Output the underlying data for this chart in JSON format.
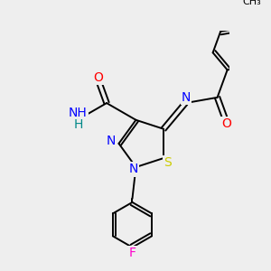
{
  "bg_color": "#eeeeee",
  "atom_colors": {
    "C": "#000000",
    "N": "#0000ff",
    "O": "#ff0000",
    "S": "#cccc00",
    "F": "#ff00cc",
    "H": "#008888"
  },
  "bond_color": "#000000",
  "bond_lw": 1.4,
  "font_size": 9,
  "figsize": [
    3.0,
    3.0
  ],
  "dpi": 100,
  "xlim": [
    -2.2,
    2.2
  ],
  "ylim": [
    -2.8,
    2.5
  ]
}
